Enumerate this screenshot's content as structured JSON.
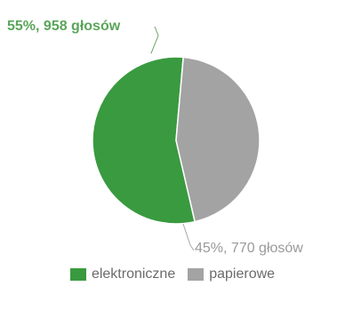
{
  "chart_data": {
    "type": "pie",
    "slices": [
      {
        "label": "elektroniczne",
        "percent": 55,
        "votes": 958,
        "data_label": "55%, 958 głosów",
        "color": "#3a9a3f"
      },
      {
        "label": "papierowe",
        "percent": 45,
        "votes": 770,
        "data_label": "45%, 770 głosów",
        "color": "#a3a3a3"
      }
    ],
    "legend": {
      "position": "bottom",
      "items": [
        "elektroniczne",
        "papierowe"
      ]
    },
    "label_colors": {
      "first": "#5aa55a",
      "second": "#9a9a9a"
    }
  }
}
